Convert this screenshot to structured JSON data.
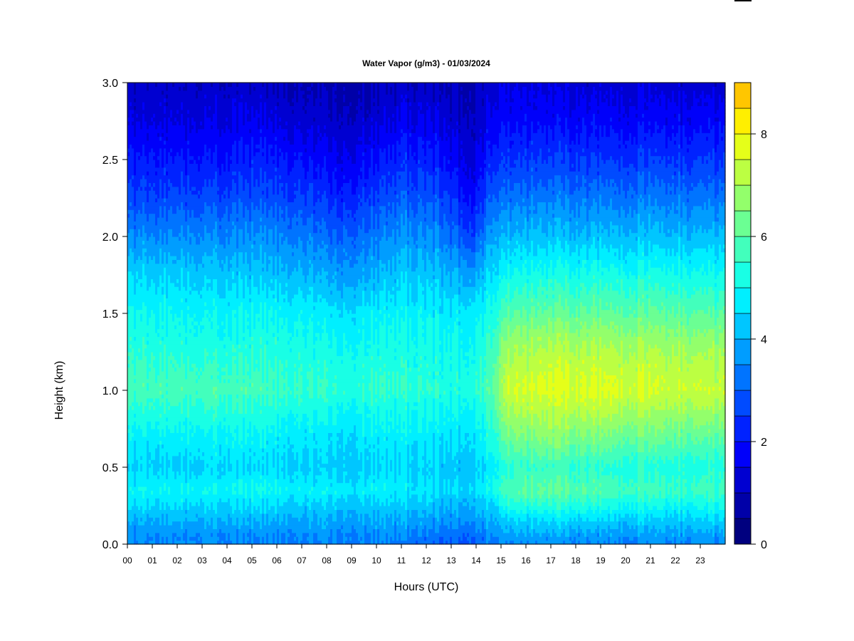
{
  "chart_data": {
    "type": "heatmap",
    "title": "Water Vapor (g/m3) - 01/03/2024",
    "xlabel": "Hours (UTC)",
    "ylabel": "Height (km)",
    "xlim": [
      0,
      24
    ],
    "ylim": [
      0,
      3
    ],
    "x_ticks": [
      "00",
      "01",
      "02",
      "03",
      "04",
      "05",
      "06",
      "07",
      "08",
      "09",
      "10",
      "11",
      "12",
      "13",
      "14",
      "15",
      "16",
      "17",
      "18",
      "19",
      "20",
      "21",
      "22",
      "23"
    ],
    "y_ticks": [
      "0.0",
      "0.5",
      "1.0",
      "1.5",
      "2.0",
      "2.5",
      "3.0"
    ],
    "y_tick_values": [
      0,
      0.5,
      1.0,
      1.5,
      2.0,
      2.5,
      3.0
    ],
    "colorbar": {
      "range": [
        0,
        9
      ],
      "step": 0.5,
      "tick_labels": [
        "0",
        "2",
        "4",
        "6",
        "8"
      ],
      "tick_values": [
        0,
        2,
        4,
        6,
        8
      ],
      "colors": [
        "#00007f",
        "#0000a8",
        "#0000d1",
        "#0000fa",
        "#0022ff",
        "#004bff",
        "#0074ff",
        "#009dff",
        "#00c6ff",
        "#00efff",
        "#19ffe5",
        "#42ffbc",
        "#6bff93",
        "#93ff6b",
        "#bcff42",
        "#e5ff19",
        "#ffef00",
        "#ffc600",
        "#ff9d00",
        "#ff7400",
        "#ff4b00",
        "#ff2200",
        "#fa0000",
        "#d10000",
        "#a80000",
        "#7f0000"
      ]
    },
    "grid": false,
    "legend": "colorbar-right",
    "profile_heights_km": [
      0.0,
      0.05,
      0.15,
      0.3,
      0.35,
      0.5,
      0.7,
      0.9,
      1.0,
      1.1,
      1.3,
      1.5,
      1.75,
      2.0,
      2.25,
      2.5,
      2.75,
      3.0
    ],
    "profiles": [
      {
        "hour": 0,
        "values": [
          3.5,
          3.5,
          3.9,
          4.7,
          4.9,
          4.4,
          4.8,
          5.4,
          5.8,
          5.6,
          5.3,
          5.0,
          4.4,
          3.5,
          2.6,
          2.0,
          1.4,
          1.0
        ]
      },
      {
        "hour": 2,
        "values": [
          3.5,
          3.6,
          4.0,
          4.8,
          5.0,
          4.4,
          4.9,
          5.5,
          5.8,
          5.7,
          5.3,
          5.0,
          4.4,
          3.6,
          2.7,
          2.1,
          1.5,
          1.1
        ]
      },
      {
        "hour": 4,
        "values": [
          3.5,
          3.6,
          4.0,
          4.7,
          5.0,
          4.5,
          4.9,
          5.5,
          5.8,
          5.6,
          5.2,
          4.9,
          4.3,
          3.5,
          2.7,
          2.0,
          1.5,
          1.1
        ]
      },
      {
        "hour": 5,
        "values": [
          3.4,
          3.5,
          4.0,
          4.8,
          5.1,
          4.5,
          4.9,
          5.4,
          5.8,
          5.6,
          5.3,
          5.0,
          4.3,
          3.6,
          2.8,
          2.2,
          1.6,
          1.1
        ]
      },
      {
        "hour": 7,
        "values": [
          3.4,
          3.5,
          3.9,
          4.6,
          4.9,
          4.4,
          4.7,
          5.3,
          5.6,
          5.5,
          5.2,
          4.9,
          4.1,
          3.4,
          2.6,
          2.0,
          1.3,
          0.9
        ]
      },
      {
        "hour": 8.5,
        "values": [
          3.5,
          3.5,
          3.9,
          4.5,
          4.8,
          4.3,
          4.6,
          5.1,
          5.4,
          5.3,
          5.0,
          4.6,
          3.8,
          3.0,
          2.2,
          1.6,
          1.1,
          0.8
        ]
      },
      {
        "hour": 10,
        "values": [
          3.4,
          3.5,
          3.9,
          4.6,
          4.9,
          4.4,
          4.7,
          5.2,
          5.5,
          5.4,
          5.1,
          4.8,
          4.0,
          3.3,
          2.6,
          1.9,
          1.3,
          0.9
        ]
      },
      {
        "hour": 11,
        "values": [
          3.3,
          3.5,
          3.9,
          4.6,
          4.8,
          4.5,
          4.8,
          5.2,
          5.5,
          5.4,
          5.2,
          4.9,
          4.3,
          3.7,
          2.9,
          2.3,
          1.6,
          1.1
        ]
      },
      {
        "hour": 12.5,
        "values": [
          3.0,
          3.2,
          3.7,
          4.3,
          4.6,
          4.3,
          4.7,
          5.1,
          5.4,
          5.3,
          5.1,
          4.8,
          4.2,
          3.5,
          2.8,
          2.1,
          1.5,
          1.0
        ]
      },
      {
        "hour": 13.9,
        "values": [
          2.9,
          3.1,
          3.6,
          4.2,
          4.5,
          4.2,
          4.6,
          5.0,
          5.3,
          5.2,
          5.0,
          4.7,
          3.8,
          2.6,
          1.8,
          1.3,
          1.0,
          0.9
        ]
      },
      {
        "hour": 14.6,
        "values": [
          3.3,
          3.5,
          4.0,
          4.7,
          5.1,
          4.8,
          5.3,
          5.8,
          6.0,
          5.9,
          5.6,
          5.2,
          4.6,
          3.9,
          3.0,
          2.3,
          1.7,
          1.3
        ]
      },
      {
        "hour": 15.3,
        "values": [
          3.5,
          3.7,
          4.4,
          5.6,
          5.9,
          5.4,
          6.3,
          7.1,
          7.4,
          7.3,
          6.8,
          6.0,
          5.0,
          4.1,
          3.2,
          2.4,
          1.8,
          1.4
        ]
      },
      {
        "hour": 17,
        "values": [
          3.6,
          3.8,
          4.5,
          5.8,
          6.1,
          5.6,
          6.6,
          7.3,
          7.6,
          7.5,
          7.0,
          6.1,
          5.2,
          4.2,
          3.3,
          2.5,
          1.8,
          1.3
        ]
      },
      {
        "hour": 19,
        "values": [
          3.5,
          3.7,
          4.4,
          5.6,
          5.9,
          5.4,
          6.4,
          7.3,
          7.7,
          7.5,
          7.0,
          6.2,
          5.2,
          4.2,
          3.3,
          2.5,
          1.8,
          1.3
        ]
      },
      {
        "hour": 21,
        "values": [
          3.5,
          3.7,
          4.3,
          5.4,
          5.7,
          5.3,
          6.2,
          7.1,
          7.5,
          7.4,
          6.9,
          6.1,
          5.2,
          4.2,
          3.3,
          2.5,
          1.8,
          1.3
        ]
      },
      {
        "hour": 24,
        "values": [
          3.5,
          3.7,
          4.3,
          5.3,
          5.6,
          5.2,
          6.0,
          6.9,
          7.3,
          7.2,
          6.7,
          5.9,
          5.0,
          4.1,
          3.2,
          2.4,
          1.7,
          1.2
        ]
      }
    ]
  }
}
